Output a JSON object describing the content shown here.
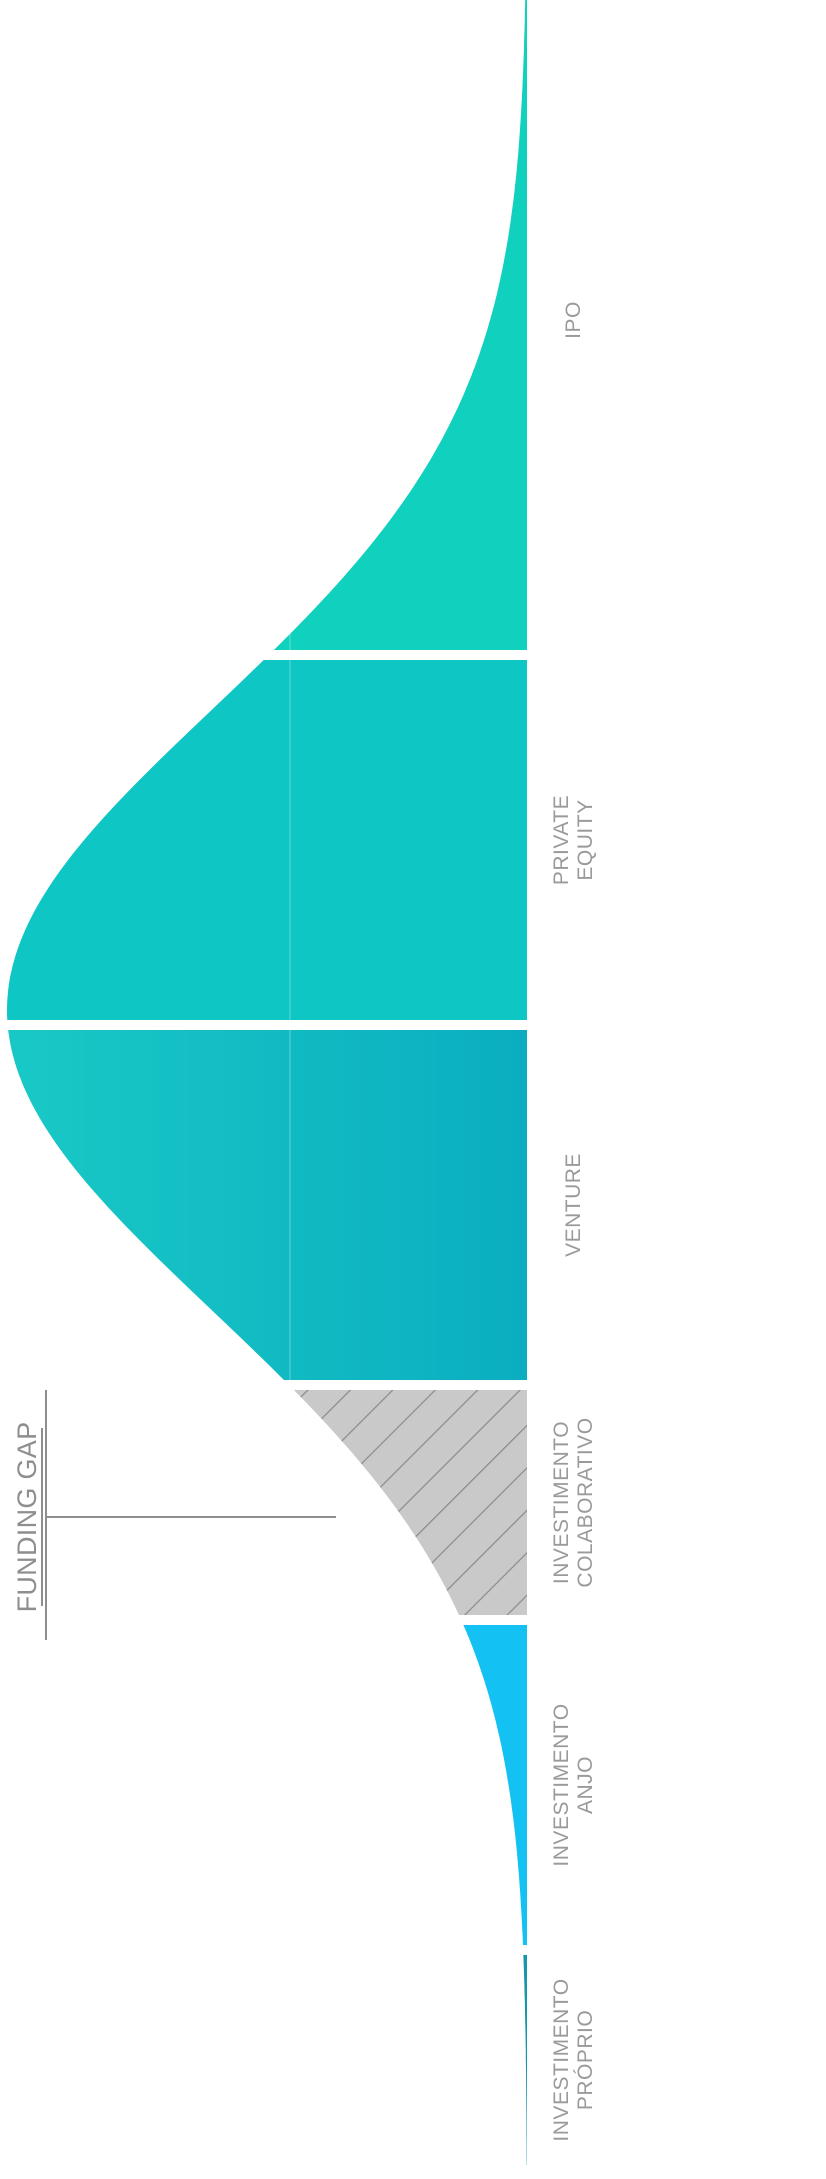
{
  "diagram": {
    "title": "FUNDING GAP",
    "segments": [
      {
        "id": "proprio",
        "lines": [
          "INVESTIMENTO",
          "PRÓPRIO"
        ],
        "color": "#1596ab"
      },
      {
        "id": "anjo",
        "lines": [
          "INVESTIMENTO",
          "ANJO"
        ],
        "color": "#13c1f2"
      },
      {
        "id": "colaborativo",
        "lines": [
          "INVESTIMENTO",
          "COLABORATIVO"
        ],
        "color": "#c9c9c9"
      },
      {
        "id": "venture",
        "lines": [
          "VENTURE"
        ],
        "color": "#0eb4c2"
      },
      {
        "id": "private",
        "lines": [
          "PRIVATE",
          "EQUITY"
        ],
        "color": "#0ec6c3"
      },
      {
        "id": "ipo",
        "lines": [
          "IPO"
        ],
        "color": "#10d0be"
      }
    ],
    "colors": {
      "hatch": "#8a8a8a",
      "divider": "#ffffff",
      "label": "#9a9a9a",
      "leader": "#8e8e8e"
    }
  }
}
